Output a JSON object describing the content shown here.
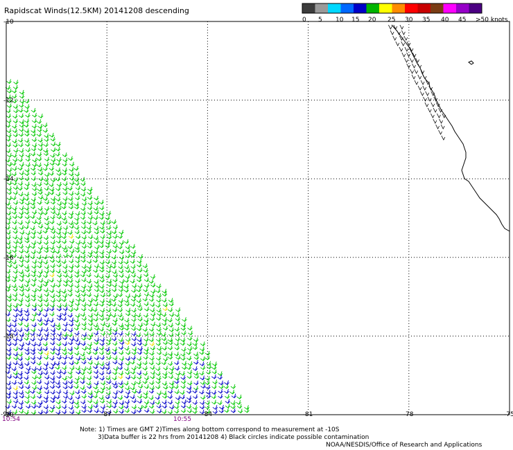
{
  "title": "Rapidscat Winds(12.5KM) 20141208 descending",
  "colorbar": {
    "labels": [
      "0",
      "5",
      "10",
      "15",
      "20",
      "25",
      "30",
      "35",
      "40",
      "45",
      ">50 knots"
    ],
    "colors": [
      "#3c3c3c",
      "#9a9a9a",
      "#00d8ff",
      "#0068ff",
      "#0000c8",
      "#00b400",
      "#ffff00",
      "#ff8c00",
      "#ff0000",
      "#c80000",
      "#7a3c14",
      "#ff00ff",
      "#9600c8",
      "#4b0082"
    ]
  },
  "axes": {
    "x_ticks": [
      "-90",
      "-87",
      "-84",
      "-81",
      "-78",
      "-75"
    ],
    "y_ticks": [
      "-10",
      "-12",
      "-14",
      "-16",
      "-18",
      "-20"
    ]
  },
  "times": {
    "left": "10:54",
    "mid": "10:55"
  },
  "notes": [
    "Note: 1) Times are GMT 2)Times along bottom correspond to measurement at -10S",
    "3)Data buffer is 22 hrs from 20141208 4) Black circles indicate possible contamination",
    "NOAA/NESDIS/Office of Research and Applications"
  ],
  "map": {
    "lon_range": [
      -90,
      -75
    ],
    "lat_range": [
      -20,
      -10
    ],
    "swath_colors": {
      "moderate": "#00c800",
      "light": "#0000c8",
      "strong": "#f0e000"
    }
  }
}
